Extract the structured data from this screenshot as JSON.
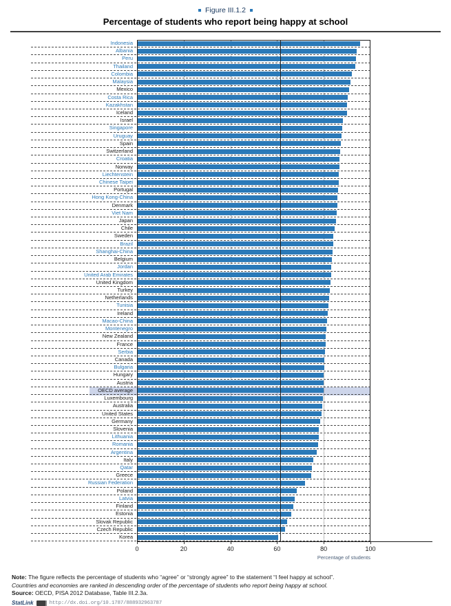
{
  "figure": {
    "label": "Figure III.1.2"
  },
  "title": "Percentage of students who report being happy at school",
  "chart_data": {
    "type": "bar",
    "orientation": "horizontal",
    "title": "Percentage of students who report being happy at school",
    "xlabel": "Percentage of students",
    "xlim": [
      0,
      100
    ],
    "x_ticks": [
      0,
      20,
      40,
      60,
      80,
      100
    ],
    "grid": "dotted vertical gridlines at ticks, dashed horizontal row separators",
    "legend_position": "none",
    "reference_line_x": 61.4,
    "highlight_category": "OECD average",
    "bar_color": "#2a79b8",
    "partner_label_color": "#2a79b8",
    "oecd_label_color": "#1a1a1a",
    "highlight_bg": "#cdd5ea",
    "rows": [
      {
        "label": "Indonesia",
        "value": 95.7,
        "partner": true
      },
      {
        "label": "Albania",
        "value": 94.0,
        "partner": true
      },
      {
        "label": "Peru",
        "value": 93.7,
        "partner": true
      },
      {
        "label": "Thailand",
        "value": 93.4,
        "partner": true
      },
      {
        "label": "Colombia",
        "value": 92.0,
        "partner": true
      },
      {
        "label": "Malaysia",
        "value": 91.5,
        "partner": true
      },
      {
        "label": "Mexico",
        "value": 90.9,
        "partner": false
      },
      {
        "label": "Costa Rica",
        "value": 90.4,
        "partner": true
      },
      {
        "label": "Kazakhstan",
        "value": 90.1,
        "partner": true
      },
      {
        "label": "Iceland",
        "value": 90.0,
        "partner": false
      },
      {
        "label": "Israel",
        "value": 88.3,
        "partner": false
      },
      {
        "label": "Singapore",
        "value": 87.9,
        "partner": true
      },
      {
        "label": "Uruguay",
        "value": 87.5,
        "partner": true
      },
      {
        "label": "Spain",
        "value": 87.4,
        "partner": false
      },
      {
        "label": "Switzerland",
        "value": 87.0,
        "partner": false
      },
      {
        "label": "Croatia",
        "value": 86.8,
        "partner": true
      },
      {
        "label": "Norway",
        "value": 86.7,
        "partner": false
      },
      {
        "label": "Liechtenstein",
        "value": 86.4,
        "partner": true
      },
      {
        "label": "Chinese Taipei",
        "value": 86.3,
        "partner": true
      },
      {
        "label": "Portugal",
        "value": 86.1,
        "partner": false
      },
      {
        "label": "Hong Kong-China",
        "value": 85.9,
        "partner": true
      },
      {
        "label": "Denmark",
        "value": 85.8,
        "partner": false
      },
      {
        "label": "Viet Nam",
        "value": 85.5,
        "partner": true
      },
      {
        "label": "Japan",
        "value": 85.2,
        "partner": false
      },
      {
        "label": "Chile",
        "value": 84.6,
        "partner": false
      },
      {
        "label": "Sweden",
        "value": 84.2,
        "partner": false
      },
      {
        "label": "Brazil",
        "value": 84.1,
        "partner": true
      },
      {
        "label": "Shanghai-China",
        "value": 83.9,
        "partner": true
      },
      {
        "label": "Belgium",
        "value": 83.4,
        "partner": false
      },
      {
        "label": "Jordan",
        "value": 83.3,
        "partner": true
      },
      {
        "label": "United Arab Emirates",
        "value": 83.1,
        "partner": true
      },
      {
        "label": "United Kingdom",
        "value": 82.9,
        "partner": false
      },
      {
        "label": "Turkey",
        "value": 82.6,
        "partner": false
      },
      {
        "label": "Netherlands",
        "value": 82.4,
        "partner": false
      },
      {
        "label": "Tunisia",
        "value": 82.0,
        "partner": true
      },
      {
        "label": "Ireland",
        "value": 81.8,
        "partner": false
      },
      {
        "label": "Macao-China",
        "value": 81.5,
        "partner": true
      },
      {
        "label": "Montenegro",
        "value": 81.0,
        "partner": true
      },
      {
        "label": "New Zealand",
        "value": 80.9,
        "partner": false
      },
      {
        "label": "France",
        "value": 80.7,
        "partner": false
      },
      {
        "label": "Serbia",
        "value": 80.4,
        "partner": true
      },
      {
        "label": "Canada",
        "value": 80.3,
        "partner": false
      },
      {
        "label": "Bulgaria",
        "value": 80.1,
        "partner": true
      },
      {
        "label": "Hungary",
        "value": 80.0,
        "partner": false
      },
      {
        "label": "Austria",
        "value": 79.9,
        "partner": false
      },
      {
        "label": "OECD average",
        "value": 79.8,
        "partner": false
      },
      {
        "label": "Luxembourg",
        "value": 79.5,
        "partner": false
      },
      {
        "label": "Australia",
        "value": 79.3,
        "partner": false
      },
      {
        "label": "United States",
        "value": 79.0,
        "partner": false
      },
      {
        "label": "Germany",
        "value": 78.4,
        "partner": false
      },
      {
        "label": "Slovenia",
        "value": 78.0,
        "partner": false
      },
      {
        "label": "Lithuania",
        "value": 77.8,
        "partner": true
      },
      {
        "label": "Romania",
        "value": 77.6,
        "partner": true
      },
      {
        "label": "Argentina",
        "value": 77.0,
        "partner": true
      },
      {
        "label": "Italy",
        "value": 75.4,
        "partner": false
      },
      {
        "label": "Qatar",
        "value": 74.9,
        "partner": true
      },
      {
        "label": "Greece",
        "value": 74.5,
        "partner": false
      },
      {
        "label": "Russian Federation",
        "value": 71.9,
        "partner": true
      },
      {
        "label": "Poland",
        "value": 68.5,
        "partner": false
      },
      {
        "label": "Latvia",
        "value": 67.5,
        "partner": true
      },
      {
        "label": "Finland",
        "value": 66.9,
        "partner": false
      },
      {
        "label": "Estonia",
        "value": 66.2,
        "partner": false
      },
      {
        "label": "Slovak Republic",
        "value": 64.3,
        "partner": false
      },
      {
        "label": "Czech Republic",
        "value": 63.4,
        "partner": false
      },
      {
        "label": "Korea",
        "value": 60.4,
        "partner": false
      }
    ]
  },
  "footer": {
    "note_label": "Note:",
    "note_text": " The figure reflects the percentage of students who “agree” or “strongly agree” to the statement “I feel happy at school”.",
    "ranking_note": "Countries and economies are ranked in descending order of the percentage of students who report being happy at school.",
    "source_label": "Source:",
    "source_text": " OECD, PISA 2012 Database, Table III.2.3a.",
    "statlink_label": "StatLink",
    "statlink_url": "http://dx.doi.org/10.1787/888932963787"
  }
}
